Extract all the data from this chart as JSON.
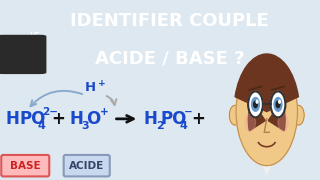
{
  "bg_top_color": "#2db84b",
  "bg_bottom_color": "#dde8f0",
  "title_line1": "IDENTIFIER COUPLE",
  "title_line2": "ACIDE / BASE ?",
  "title_color": "#ffffff",
  "badge_bg": "#2a2a2a",
  "badge_text_color": "#ffffff",
  "formula_color": "#1a4acc",
  "arrow_color": "#8aaacc",
  "arrow_color2": "#aaaaaa",
  "hplus_color": "#1a4acc",
  "base_label": "BASE",
  "acide_label": "ACIDE",
  "base_bg": "#ffbbbb",
  "base_border": "#dd5555",
  "acide_bg": "#c8d8ee",
  "acide_border": "#8899bb",
  "base_label_color": "#cc2222",
  "acide_label_color": "#334466",
  "plus_color": "#111111",
  "arrow_main_color": "#111111",
  "face_skin": "#f0c888",
  "face_skin_dark": "#c8a060",
  "face_hair": "#6b3520",
  "face_glasses": "#333333",
  "face_eye_color": "#6699cc",
  "face_shirt": "#f0f0f0",
  "face_shirt_collar": "#dddddd"
}
